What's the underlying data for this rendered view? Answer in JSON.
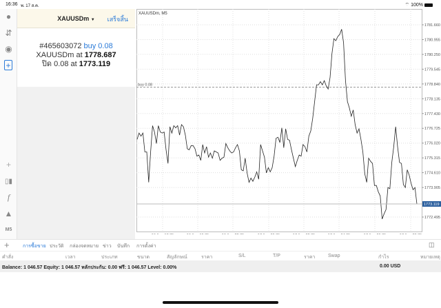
{
  "status": {
    "time": "16:36",
    "date": "พ. 17 ส.ค.",
    "battery": "100%"
  },
  "panel": {
    "symbol": "XAUUSDm",
    "done_label": "เสร็จสิ้น",
    "order_id": "#465603072",
    "order_side": "buy 0.08",
    "line2_prefix": "XAUUSDm at",
    "open_price": "1778.687",
    "line3_prefix": "ปิด 0.08 at",
    "close_price": "1773.119"
  },
  "sidebar_icons": [
    "account-icon",
    "trade-icon",
    "chat-icon",
    "new-order-icon",
    "crosshair-icon",
    "candles-icon",
    "indicator-icon",
    "objects-icon",
    "timeframe-icon"
  ],
  "timeframe": "M5",
  "chart_data": {
    "type": "line",
    "title": "XAUUSDm, M5",
    "order_line": {
      "label": "buy 0.08",
      "price": 1778.687
    },
    "current_price": {
      "label": "1773.119",
      "value": 1773.119
    },
    "yticks": [
      "1781.660",
      "1780.955",
      "1780.250",
      "1779.545",
      "1778.840",
      "1778.135",
      "1777.430",
      "1776.725",
      "1776.020",
      "1775.315",
      "1774.610",
      "1773.905",
      "1772.495"
    ],
    "ylim": [
      1771.95,
      1782.4
    ],
    "xticks": [
      "16 Aug 17:35",
      "16 Aug 19:35",
      "16 Aug 22:35",
      "17 Aug 00:35",
      "17 Aug 02:35",
      "17 Aug 04:35",
      "17 Aug 06:35",
      "17 Aug 08:35"
    ],
    "grid": true,
    "values": [
      1776.2,
      1776.5,
      1776.35,
      1776.5,
      1775.6,
      1775.6,
      1774.15,
      1775.6,
      1776.85,
      1776.55,
      1776.0,
      1776.85,
      1776.55,
      1776.5,
      1776.55,
      1775.7,
      1775.05,
      1776.8,
      1776.5,
      1776.85,
      1776.75,
      1776.85,
      1776.4,
      1776.9,
      1776.8,
      1776.4,
      1775.75,
      1775.7,
      1775.9,
      1775.9,
      1775.75,
      1775.4,
      1775.45,
      1775.2,
      1775.95,
      1775.55,
      1775.85,
      1775.35,
      1775.55,
      1775.3,
      1775.65,
      1775.6,
      1775.55,
      1775.2,
      1775.3,
      1775.35,
      1776.0,
      1775.8,
      1775.65,
      1775.55,
      1775.6,
      1775.8,
      1775.95,
      1775.65,
      1774.75,
      1774.7,
      1775.3,
      1774.6,
      1774.15,
      1774.35,
      1774.2,
      1774.4,
      1774.65,
      1774.3,
      1775.95,
      1775.65,
      1775.35,
      1774.6,
      1774.85,
      1774.65,
      1774.85,
      1775.4,
      1776.25,
      1776.3,
      1776.05,
      1776.75,
      1775.8,
      1776.7,
      1776.2,
      1776.15,
      1775.7,
      1775.3,
      1774.9,
      1775.2,
      1775.45,
      1775.4,
      1775.95,
      1775.85,
      1775.6,
      1776.35,
      1776.6,
      1777.2,
      1778.0,
      1778.8,
      1778.8,
      1778.95,
      1778.8,
      1779.0,
      1778.75,
      1778.6,
      1779.15,
      1780.3,
      1781.0,
      1780.9,
      1781.1,
      1781.2,
      1781.45,
      1780.8,
      1779.0,
      1778.0,
      1777.7,
      1777.3,
      1777.6,
      1776.9,
      1776.5,
      1776.7,
      1776.2,
      1775.6,
      1774.55,
      1774.15,
      1775.3,
      1775.15,
      1775.05,
      1774.0,
      1774.0,
      1773.7,
      1773.5,
      1772.4,
      1772.65,
      1772.85,
      1773.9,
      1773.85,
      1775.1,
      1775.85,
      1776.8,
      1775.85,
      1775.1,
      1775.05,
      1774.05,
      1773.9,
      1774.75,
      1774.5,
      1774.1,
      1773.8,
      1773.9,
      1773.12
    ]
  },
  "tabs": [
    "การซื้อขาย",
    "ประวัติ",
    "กล่องจดหมาย",
    "ข่าว",
    "บันทึก",
    "การตั้งค่า"
  ],
  "columns": [
    "คำสั่ง",
    "เวลา",
    "ประเภท",
    "ขนาด",
    "สัญลักษณ์",
    "ราคา",
    "S/L",
    "T/P",
    "ราคา",
    "Swap",
    "กำไร",
    "หมายเหตุ"
  ],
  "balance": {
    "text": "Balance: 1 046.57 Equity: 1 046.57 หลักประกัน: 0.00 ฟรี: 1 046.57 Level: 0.00%",
    "profit": "0.00  USD"
  },
  "colors": {
    "accent": "#2a7ad8",
    "price_badge": "#2b5f9e"
  }
}
